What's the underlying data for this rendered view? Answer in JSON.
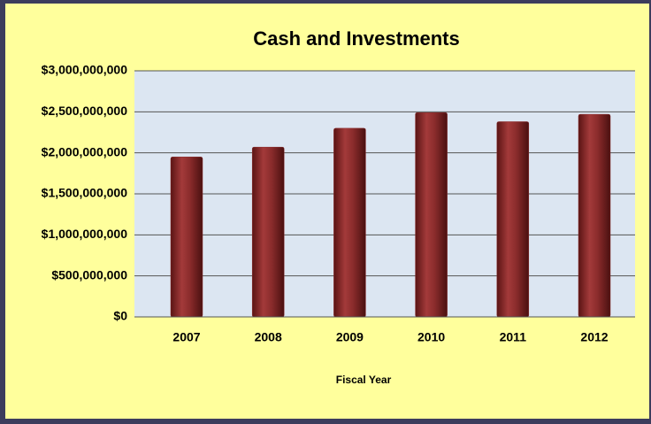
{
  "chart_data": {
    "type": "bar",
    "title": "Cash and Investments",
    "x_label": "Fiscal Year",
    "categories": [
      "2007",
      "2008",
      "2009",
      "2010",
      "2011",
      "2012"
    ],
    "values": [
      1950000000,
      2070000000,
      2300000000,
      2490000000,
      2380000000,
      2470000000
    ],
    "color": "#8b2c2c",
    "ylim": [
      0,
      3000000000
    ],
    "yticks": [
      {
        "value": 0,
        "label": "$0"
      },
      {
        "value": 500000000,
        "label": "$500,000,000"
      },
      {
        "value": 1000000000,
        "label": "$1,000,000,000"
      },
      {
        "value": 1500000000,
        "label": "$1,500,000,000"
      },
      {
        "value": 2000000000,
        "label": "$2,000,000,000"
      },
      {
        "value": 2500000000,
        "label": "$2,500,000,000"
      },
      {
        "value": 3000000000,
        "label": "$3,000,000,000"
      }
    ],
    "grid": true
  }
}
